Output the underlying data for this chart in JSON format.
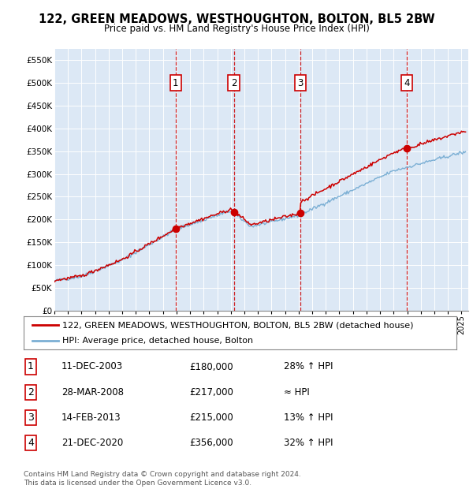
{
  "title": "122, GREEN MEADOWS, WESTHOUGHTON, BOLTON, BL5 2BW",
  "subtitle": "Price paid vs. HM Land Registry's House Price Index (HPI)",
  "ylabel_ticks": [
    "£0",
    "£50K",
    "£100K",
    "£150K",
    "£200K",
    "£250K",
    "£300K",
    "£350K",
    "£400K",
    "£450K",
    "£500K",
    "£550K"
  ],
  "ytick_values": [
    0,
    50000,
    100000,
    150000,
    200000,
    250000,
    300000,
    350000,
    400000,
    450000,
    500000,
    550000
  ],
  "xmin": 1995.0,
  "xmax": 2025.5,
  "ymin": 0,
  "ymax": 575000,
  "sale_dates": [
    2003.94,
    2008.23,
    2013.12,
    2020.97
  ],
  "sale_prices": [
    180000,
    217000,
    215000,
    356000
  ],
  "sale_labels": [
    "1",
    "2",
    "3",
    "4"
  ],
  "sale_date_strs": [
    "11-DEC-2003",
    "28-MAR-2008",
    "14-FEB-2013",
    "21-DEC-2020"
  ],
  "sale_price_strs": [
    "£180,000",
    "£217,000",
    "£215,000",
    "£356,000"
  ],
  "sale_pct_strs": [
    "28% ↑ HPI",
    "≈ HPI",
    "13% ↑ HPI",
    "32% ↑ HPI"
  ],
  "red_color": "#cc0000",
  "blue_color": "#7bafd4",
  "bg_color": "#dce8f5",
  "legend_label_red": "122, GREEN MEADOWS, WESTHOUGHTON, BOLTON, BL5 2BW (detached house)",
  "legend_label_blue": "HPI: Average price, detached house, Bolton",
  "footer1": "Contains HM Land Registry data © Crown copyright and database right 2024.",
  "footer2": "This data is licensed under the Open Government Licence v3.0."
}
